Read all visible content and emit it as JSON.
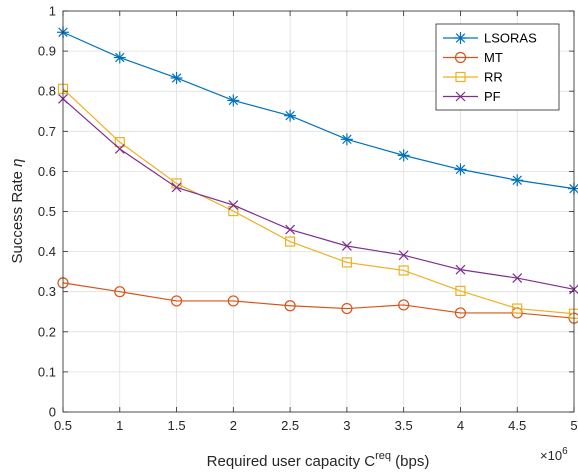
{
  "chart_data": {
    "type": "line",
    "title": "",
    "xlabel": {
      "main": "Required user capacity C",
      "sup": "req",
      "unit": " (bps)"
    },
    "ylabel": {
      "main": "Success Rate ",
      "symbol": "η"
    },
    "x_multiplier": {
      "base": "×10",
      "exp": "6"
    },
    "xlim": [
      0.5,
      5
    ],
    "ylim": [
      0,
      1
    ],
    "xticks": [
      "0.5",
      "1",
      "1.5",
      "2",
      "2.5",
      "3",
      "3.5",
      "4",
      "4.5",
      "5"
    ],
    "yticks": [
      "0",
      "0.1",
      "0.2",
      "0.3",
      "0.4",
      "0.5",
      "0.6",
      "0.7",
      "0.8",
      "0.9",
      "1"
    ],
    "grid": true,
    "legend_position": "top-right",
    "x": [
      0.5,
      1.0,
      1.5,
      2.0,
      2.5,
      3.0,
      3.5,
      4.0,
      4.5,
      5.0
    ],
    "series": [
      {
        "name": "LSORAS",
        "color": "#0072BD",
        "marker": "asterisk",
        "values": [
          0.947,
          0.884,
          0.833,
          0.777,
          0.739,
          0.68,
          0.64,
          0.605,
          0.578,
          0.557
        ]
      },
      {
        "name": "MT",
        "color": "#D95319",
        "marker": "circle",
        "values": [
          0.322,
          0.3,
          0.277,
          0.277,
          0.265,
          0.258,
          0.267,
          0.247,
          0.247,
          0.234
        ]
      },
      {
        "name": "RR",
        "color": "#EDB120",
        "marker": "square",
        "values": [
          0.806,
          0.673,
          0.57,
          0.501,
          0.425,
          0.373,
          0.353,
          0.302,
          0.258,
          0.245
        ]
      },
      {
        "name": "PF",
        "color": "#7E2F8E",
        "marker": "x",
        "values": [
          0.781,
          0.656,
          0.56,
          0.516,
          0.455,
          0.414,
          0.391,
          0.355,
          0.334,
          0.306
        ]
      }
    ]
  }
}
